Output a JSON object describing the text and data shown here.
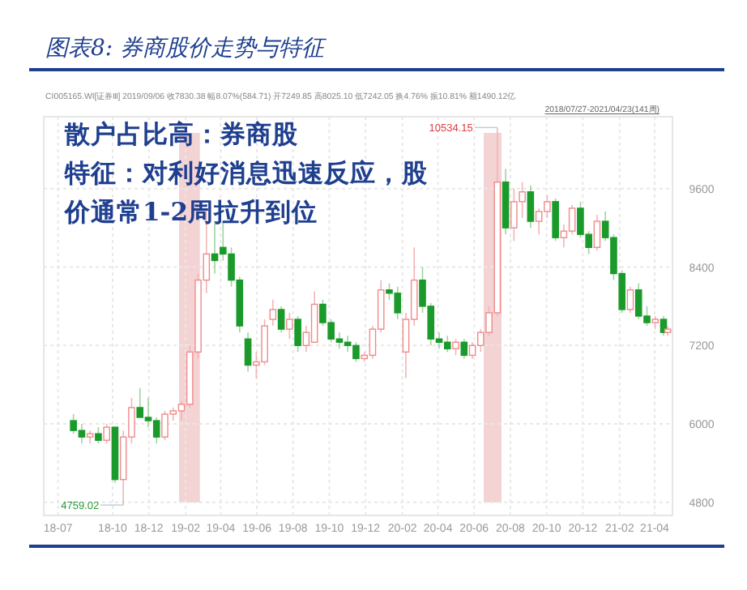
{
  "chart_data": {
    "type": "candlestick",
    "title": "图表8:  券商股价走势与特征",
    "annotations": [
      "CI005165.WI[证券Ⅲ]   2019/09/06  收7830.38  幅8.07%(584.71)  开7249.85  高8025.10  低7242.05  换4.76%  振10.81%  额1490.12亿",
      "2018/07/27-2021/04/23(141周)",
      "散户占比高：券商股",
      "特征：对利好消息迅速反应，股",
      "价通常1-2周拉升到位",
      {
        "text": "4759.02",
        "x": "2018-10-19",
        "y": 4759.02
      },
      {
        "text": "10534.15",
        "x": "2020-07-10",
        "y": 10534.15
      }
    ],
    "x": [
      "2018-07-27",
      "2018-08-10",
      "2018-08-24",
      "2018-09-07",
      "2018-09-21",
      "2018-10-05",
      "2018-10-19",
      "2018-11-02",
      "2018-11-16",
      "2018-11-30",
      "2018-12-14",
      "2018-12-28",
      "2019-01-11",
      "2019-01-25",
      "2019-02-08",
      "2019-02-22",
      "2019-03-08",
      "2019-03-22",
      "2019-04-05",
      "2019-04-19",
      "2019-05-03",
      "2019-05-17",
      "2019-05-31",
      "2019-06-14",
      "2019-06-28",
      "2019-07-12",
      "2019-07-26",
      "2019-08-09",
      "2019-08-23",
      "2019-09-06",
      "2019-09-20",
      "2019-10-04",
      "2019-10-18",
      "2019-11-01",
      "2019-11-15",
      "2019-11-29",
      "2019-12-13",
      "2019-12-27",
      "2020-01-10",
      "2020-01-24",
      "2020-02-07",
      "2020-02-21",
      "2020-03-06",
      "2020-03-20",
      "2020-04-03",
      "2020-04-17",
      "2020-05-01",
      "2020-05-15",
      "2020-05-29",
      "2020-06-12",
      "2020-06-26",
      "2020-07-10",
      "2020-07-24",
      "2020-08-07",
      "2020-08-21",
      "2020-09-04",
      "2020-09-18",
      "2020-10-02",
      "2020-10-16",
      "2020-10-30",
      "2020-11-13",
      "2020-11-27",
      "2020-12-11",
      "2020-12-25",
      "2021-01-08",
      "2021-01-22",
      "2021-02-05",
      "2021-02-19",
      "2021-03-05",
      "2021-03-19",
      "2021-04-02",
      "2021-04-16",
      "2021-04-23"
    ],
    "ohlc": [
      [
        6050,
        6150,
        5850,
        5900
      ],
      [
        5900,
        6000,
        5700,
        5800
      ],
      [
        5800,
        5900,
        5700,
        5850
      ],
      [
        5850,
        5950,
        5700,
        5750
      ],
      [
        5750,
        6000,
        5700,
        5950
      ],
      [
        5950,
        5950,
        5100,
        5150
      ],
      [
        5150,
        5900,
        4759.02,
        5800
      ],
      [
        5800,
        6400,
        5700,
        6250
      ],
      [
        6250,
        6550,
        6100,
        6100
      ],
      [
        6100,
        6400,
        5950,
        6050
      ],
      [
        6050,
        6100,
        5700,
        5800
      ],
      [
        5800,
        6200,
        5750,
        6150
      ],
      [
        6150,
        6250,
        6050,
        6200
      ],
      [
        6200,
        6350,
        6050,
        6300
      ],
      [
        6300,
        7200,
        6250,
        7100
      ],
      [
        7100,
        8300,
        7000,
        8200
      ],
      [
        8200,
        9300,
        8000,
        8600
      ],
      [
        8600,
        9100,
        8300,
        8500
      ],
      [
        8700,
        9100,
        8500,
        8600
      ],
      [
        8600,
        8700,
        8100,
        8200
      ],
      [
        8200,
        8250,
        7400,
        7500
      ],
      [
        7300,
        7400,
        6800,
        6900
      ],
      [
        6900,
        7100,
        6700,
        6950
      ],
      [
        6950,
        7600,
        6900,
        7500
      ],
      [
        7600,
        7900,
        7500,
        7750
      ],
      [
        7750,
        7800,
        7400,
        7450
      ],
      [
        7450,
        7700,
        7300,
        7600
      ],
      [
        7600,
        7650,
        7100,
        7200
      ],
      [
        7200,
        7500,
        7100,
        7400
      ],
      [
        7249.85,
        8025.1,
        7242.05,
        7830.38
      ],
      [
        7830,
        7900,
        7500,
        7550
      ],
      [
        7550,
        7600,
        7250,
        7300
      ],
      [
        7300,
        7400,
        7150,
        7250
      ],
      [
        7250,
        7350,
        7100,
        7200
      ],
      [
        7200,
        7250,
        6950,
        7000
      ],
      [
        7000,
        7100,
        6950,
        7050
      ],
      [
        7050,
        7500,
        7000,
        7450
      ],
      [
        7450,
        8200,
        7400,
        8050
      ],
      [
        8050,
        8150,
        7900,
        8000
      ],
      [
        8000,
        8100,
        7600,
        7700
      ],
      [
        7100,
        7700,
        6700,
        7600
      ],
      [
        7600,
        8700,
        7500,
        8200
      ],
      [
        8200,
        8400,
        7700,
        7800
      ],
      [
        7800,
        7850,
        7200,
        7300
      ],
      [
        7300,
        7400,
        7150,
        7250
      ],
      [
        7250,
        7350,
        7100,
        7150
      ],
      [
        7150,
        7300,
        7050,
        7250
      ],
      [
        7250,
        7300,
        7000,
        7050
      ],
      [
        7050,
        7250,
        7000,
        7200
      ],
      [
        7200,
        7450,
        7100,
        7400
      ],
      [
        7400,
        7800,
        7350,
        7700
      ],
      [
        7700,
        10534.15,
        7650,
        9700
      ],
      [
        9700,
        9900,
        8900,
        9000
      ],
      [
        9000,
        9600,
        8800,
        9400
      ],
      [
        9400,
        9700,
        9150,
        9550
      ],
      [
        9550,
        9650,
        9000,
        9100
      ],
      [
        9100,
        9300,
        8900,
        9250
      ],
      [
        9250,
        9500,
        9150,
        9400
      ],
      [
        9400,
        9450,
        8800,
        8850
      ],
      [
        8850,
        9050,
        8700,
        8950
      ],
      [
        8950,
        9350,
        8900,
        9300
      ],
      [
        9300,
        9400,
        8850,
        8900
      ],
      [
        8900,
        8950,
        8600,
        8700
      ],
      [
        8700,
        9200,
        8650,
        9100
      ],
      [
        9100,
        9250,
        8800,
        8850
      ],
      [
        8850,
        8900,
        8200,
        8300
      ],
      [
        8300,
        8350,
        7700,
        7750
      ],
      [
        7750,
        8100,
        7700,
        8050
      ],
      [
        8050,
        8150,
        7600,
        7650
      ],
      [
        7650,
        7800,
        7500,
        7550
      ],
      [
        7550,
        7650,
        7450,
        7600
      ],
      [
        7600,
        7650,
        7350,
        7400
      ],
      [
        7400,
        7500,
        7350,
        7450
      ]
    ],
    "xlim": [
      "2018-06-07",
      "2021-05-01"
    ],
    "xticks": [
      {
        "value": "2018-07-01",
        "label": "18-07"
      },
      {
        "value": "2018-10-01",
        "label": "18-10"
      },
      {
        "value": "2018-12-01",
        "label": "18-12"
      },
      {
        "value": "2019-02-01",
        "label": "19-02"
      },
      {
        "value": "2019-04-01",
        "label": "19-04"
      },
      {
        "value": "2019-06-01",
        "label": "19-06"
      },
      {
        "value": "2019-08-01",
        "label": "19-08"
      },
      {
        "value": "2019-10-01",
        "label": "19-10"
      },
      {
        "value": "2019-12-01",
        "label": "19-12"
      },
      {
        "value": "2020-02-01",
        "label": "20-02"
      },
      {
        "value": "2020-04-01",
        "label": "20-04"
      },
      {
        "value": "2020-06-01",
        "label": "20-06"
      },
      {
        "value": "2020-08-01",
        "label": "20-08"
      },
      {
        "value": "2020-10-01",
        "label": "20-10"
      },
      {
        "value": "2020-12-01",
        "label": "20-12"
      },
      {
        "value": "2021-02-01",
        "label": "21-02"
      },
      {
        "value": "2021-04-01",
        "label": "21-04"
      }
    ],
    "ylim": [
      4600,
      10700
    ],
    "yticks": [
      4800,
      6000,
      7200,
      8400,
      9600
    ],
    "bands": [
      {
        "axis": "x",
        "from": "2019-01-21",
        "to": "2019-02-25",
        "color": "#f3d3d3"
      },
      {
        "axis": "x",
        "from": "2020-06-17",
        "to": "2020-07-17",
        "color": "#f3d3d3"
      }
    ],
    "grid": true
  }
}
